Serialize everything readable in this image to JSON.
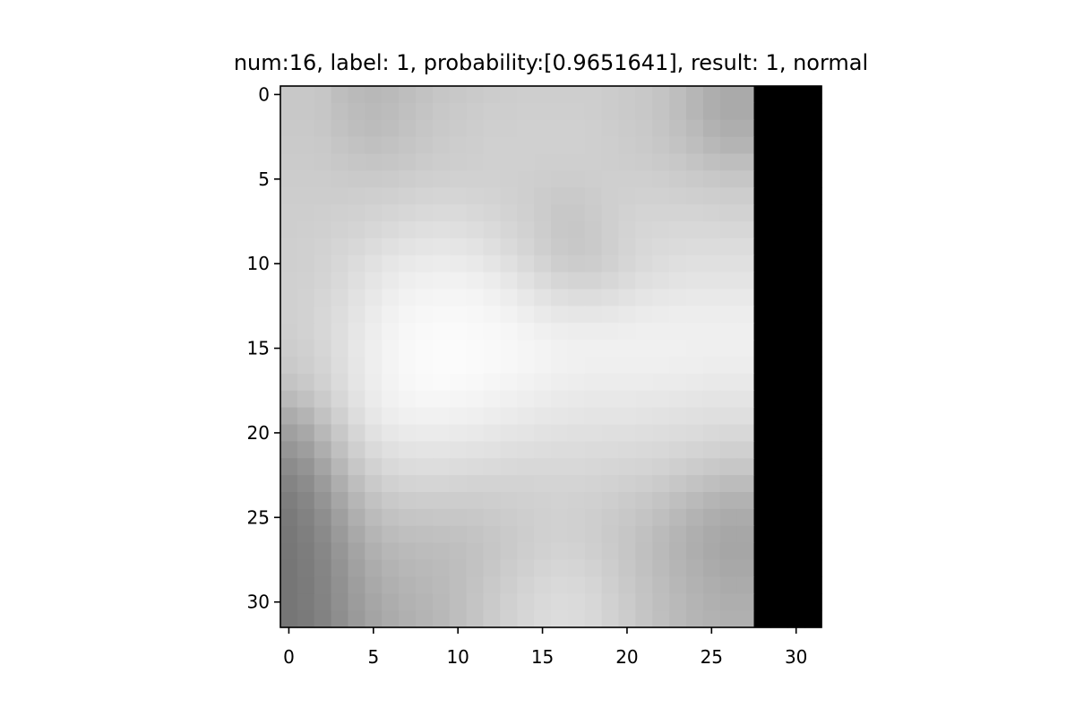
{
  "chart_data": {
    "type": "heatmap",
    "title": "num:16, label: 1, probability:[0.9651641], result: 1, normal",
    "xlabel": "",
    "ylabel": "",
    "xlim": [
      -0.5,
      31.5
    ],
    "ylim": [
      31.5,
      -0.5
    ],
    "x_ticks": [
      0,
      5,
      10,
      15,
      20,
      25,
      30
    ],
    "y_ticks": [
      0,
      5,
      10,
      15,
      20,
      25,
      30
    ],
    "grid": false,
    "colormap": "gray",
    "value_range": [
      0,
      255
    ],
    "rows": 32,
    "cols": 32,
    "values": [
      [
        200,
        200,
        198,
        190,
        186,
        184,
        186,
        190,
        194,
        198,
        200,
        202,
        204,
        205,
        206,
        206,
        206,
        206,
        206,
        204,
        202,
        200,
        196,
        190,
        182,
        174,
        170,
        170,
        0,
        0,
        0,
        0
      ],
      [
        200,
        200,
        198,
        192,
        188,
        186,
        188,
        192,
        196,
        200,
        202,
        204,
        206,
        206,
        207,
        207,
        207,
        207,
        206,
        204,
        202,
        200,
        196,
        190,
        182,
        174,
        170,
        170,
        0,
        0,
        0,
        0
      ],
      [
        201,
        201,
        199,
        194,
        190,
        188,
        190,
        194,
        198,
        201,
        203,
        205,
        207,
        207,
        208,
        208,
        208,
        208,
        207,
        205,
        203,
        201,
        197,
        192,
        186,
        178,
        174,
        174,
        0,
        0,
        0,
        0
      ],
      [
        202,
        202,
        201,
        197,
        194,
        192,
        194,
        197,
        200,
        203,
        205,
        206,
        208,
        208,
        208,
        208,
        208,
        208,
        207,
        206,
        204,
        202,
        199,
        195,
        190,
        184,
        180,
        180,
        0,
        0,
        0,
        0
      ],
      [
        203,
        203,
        202,
        200,
        198,
        197,
        198,
        200,
        203,
        205,
        206,
        207,
        208,
        208,
        208,
        207,
        207,
        207,
        207,
        206,
        205,
        204,
        202,
        200,
        196,
        192,
        190,
        190,
        0,
        0,
        0,
        0
      ],
      [
        204,
        204,
        204,
        203,
        202,
        202,
        203,
        205,
        207,
        208,
        209,
        209,
        209,
        208,
        207,
        206,
        205,
        205,
        206,
        207,
        207,
        207,
        206,
        204,
        202,
        200,
        198,
        198,
        0,
        0,
        0,
        0
      ],
      [
        205,
        205,
        205,
        205,
        206,
        207,
        208,
        210,
        212,
        213,
        213,
        212,
        211,
        209,
        207,
        204,
        202,
        202,
        204,
        207,
        208,
        209,
        209,
        208,
        207,
        206,
        205,
        205,
        0,
        0,
        0,
        0
      ],
      [
        206,
        206,
        207,
        208,
        209,
        211,
        213,
        215,
        217,
        218,
        218,
        216,
        214,
        211,
        208,
        204,
        200,
        200,
        203,
        207,
        210,
        212,
        212,
        212,
        212,
        211,
        210,
        210,
        0,
        0,
        0,
        0
      ],
      [
        206,
        207,
        208,
        210,
        212,
        215,
        218,
        221,
        223,
        224,
        223,
        221,
        218,
        214,
        210,
        205,
        200,
        199,
        202,
        207,
        211,
        214,
        215,
        216,
        216,
        216,
        215,
        215,
        0,
        0,
        0,
        0
      ],
      [
        207,
        208,
        210,
        213,
        216,
        220,
        224,
        227,
        229,
        230,
        229,
        227,
        223,
        218,
        213,
        207,
        202,
        200,
        202,
        207,
        212,
        216,
        218,
        219,
        220,
        220,
        220,
        220,
        0,
        0,
        0,
        0
      ],
      [
        207,
        208,
        211,
        215,
        220,
        225,
        230,
        233,
        235,
        236,
        235,
        233,
        229,
        224,
        218,
        212,
        206,
        204,
        205,
        209,
        214,
        218,
        221,
        223,
        224,
        224,
        224,
        224,
        0,
        0,
        0,
        0
      ],
      [
        208,
        209,
        212,
        217,
        223,
        229,
        234,
        238,
        240,
        241,
        241,
        239,
        236,
        231,
        225,
        219,
        214,
        212,
        212,
        215,
        219,
        223,
        225,
        227,
        228,
        228,
        228,
        228,
        0,
        0,
        0,
        0
      ],
      [
        208,
        210,
        214,
        219,
        226,
        232,
        238,
        242,
        244,
        245,
        245,
        244,
        241,
        237,
        232,
        227,
        223,
        221,
        221,
        223,
        226,
        229,
        231,
        232,
        233,
        233,
        233,
        233,
        0,
        0,
        0,
        0
      ],
      [
        208,
        210,
        215,
        221,
        228,
        235,
        241,
        245,
        247,
        248,
        248,
        247,
        245,
        242,
        238,
        234,
        231,
        230,
        230,
        231,
        233,
        235,
        236,
        237,
        237,
        237,
        237,
        237,
        0,
        0,
        0,
        0
      ],
      [
        207,
        210,
        215,
        222,
        230,
        237,
        243,
        247,
        249,
        250,
        250,
        249,
        248,
        246,
        243,
        240,
        238,
        237,
        237,
        237,
        238,
        239,
        239,
        239,
        239,
        239,
        239,
        239,
        0,
        0,
        0,
        0
      ],
      [
        205,
        208,
        214,
        222,
        231,
        238,
        244,
        248,
        250,
        251,
        251,
        250,
        249,
        247,
        245,
        243,
        241,
        240,
        240,
        240,
        240,
        240,
        240,
        240,
        239,
        239,
        239,
        239,
        0,
        0,
        0,
        0
      ],
      [
        202,
        206,
        212,
        221,
        230,
        238,
        244,
        248,
        250,
        251,
        251,
        250,
        249,
        247,
        245,
        243,
        241,
        240,
        239,
        239,
        239,
        239,
        239,
        238,
        238,
        237,
        237,
        237,
        0,
        0,
        0,
        0
      ],
      [
        196,
        201,
        209,
        219,
        229,
        237,
        243,
        247,
        249,
        250,
        249,
        248,
        246,
        244,
        242,
        240,
        238,
        237,
        236,
        236,
        236,
        236,
        235,
        235,
        234,
        233,
        233,
        233,
        0,
        0,
        0,
        0
      ],
      [
        186,
        193,
        203,
        215,
        226,
        235,
        241,
        244,
        246,
        246,
        245,
        244,
        242,
        240,
        238,
        236,
        234,
        233,
        232,
        232,
        232,
        231,
        231,
        230,
        229,
        228,
        228,
        228,
        0,
        0,
        0,
        0
      ],
      [
        172,
        180,
        194,
        208,
        221,
        231,
        237,
        240,
        241,
        241,
        240,
        239,
        237,
        235,
        233,
        231,
        230,
        229,
        228,
        228,
        228,
        227,
        226,
        225,
        224,
        223,
        223,
        223,
        0,
        0,
        0,
        0
      ],
      [
        160,
        168,
        184,
        200,
        214,
        225,
        231,
        234,
        235,
        235,
        234,
        233,
        231,
        229,
        228,
        226,
        225,
        224,
        224,
        223,
        223,
        222,
        221,
        220,
        219,
        217,
        216,
        216,
        0,
        0,
        0,
        0
      ],
      [
        150,
        158,
        174,
        192,
        207,
        218,
        224,
        227,
        228,
        228,
        227,
        226,
        225,
        223,
        222,
        221,
        220,
        220,
        219,
        219,
        218,
        217,
        216,
        214,
        212,
        210,
        208,
        208,
        0,
        0,
        0,
        0
      ],
      [
        140,
        148,
        164,
        183,
        199,
        210,
        217,
        220,
        221,
        221,
        220,
        219,
        218,
        217,
        216,
        216,
        216,
        216,
        215,
        214,
        213,
        212,
        210,
        207,
        204,
        201,
        199,
        199,
        0,
        0,
        0,
        0
      ],
      [
        132,
        140,
        155,
        174,
        190,
        202,
        209,
        212,
        213,
        213,
        212,
        211,
        211,
        211,
        211,
        212,
        212,
        212,
        211,
        210,
        208,
        206,
        203,
        199,
        195,
        191,
        188,
        188,
        0,
        0,
        0,
        0
      ],
      [
        126,
        134,
        148,
        166,
        182,
        194,
        201,
        204,
        205,
        205,
        205,
        205,
        206,
        207,
        208,
        209,
        210,
        209,
        208,
        206,
        203,
        200,
        196,
        191,
        186,
        181,
        178,
        178,
        0,
        0,
        0,
        0
      ],
      [
        122,
        130,
        142,
        159,
        175,
        187,
        194,
        197,
        198,
        199,
        199,
        200,
        202,
        204,
        206,
        208,
        209,
        208,
        206,
        203,
        200,
        196,
        191,
        185,
        179,
        174,
        171,
        171,
        0,
        0,
        0,
        0
      ],
      [
        120,
        127,
        138,
        154,
        169,
        181,
        188,
        191,
        192,
        193,
        194,
        196,
        199,
        202,
        205,
        208,
        209,
        208,
        206,
        202,
        198,
        193,
        187,
        181,
        175,
        170,
        167,
        167,
        0,
        0,
        0,
        0
      ],
      [
        119,
        125,
        135,
        150,
        164,
        176,
        183,
        186,
        188,
        189,
        191,
        194,
        198,
        202,
        206,
        209,
        211,
        210,
        207,
        203,
        198,
        192,
        186,
        180,
        174,
        169,
        166,
        166,
        0,
        0,
        0,
        0
      ],
      [
        118,
        124,
        133,
        147,
        161,
        172,
        179,
        183,
        185,
        187,
        190,
        194,
        199,
        204,
        208,
        212,
        214,
        213,
        210,
        205,
        199,
        193,
        187,
        181,
        176,
        171,
        168,
        168,
        0,
        0,
        0,
        0
      ],
      [
        118,
        123,
        132,
        145,
        158,
        169,
        176,
        180,
        183,
        186,
        190,
        195,
        201,
        206,
        211,
        215,
        217,
        216,
        213,
        207,
        201,
        195,
        189,
        183,
        178,
        174,
        171,
        171,
        0,
        0,
        0,
        0
      ],
      [
        118,
        123,
        131,
        144,
        156,
        166,
        173,
        178,
        181,
        185,
        190,
        196,
        202,
        208,
        213,
        217,
        219,
        218,
        215,
        209,
        203,
        196,
        190,
        185,
        180,
        176,
        174,
        174,
        0,
        0,
        0,
        0
      ],
      [
        118,
        122,
        130,
        142,
        154,
        164,
        171,
        176,
        180,
        184,
        190,
        196,
        203,
        209,
        214,
        218,
        220,
        219,
        216,
        210,
        204,
        197,
        191,
        186,
        181,
        178,
        176,
        176,
        0,
        0,
        0,
        0
      ]
    ]
  }
}
